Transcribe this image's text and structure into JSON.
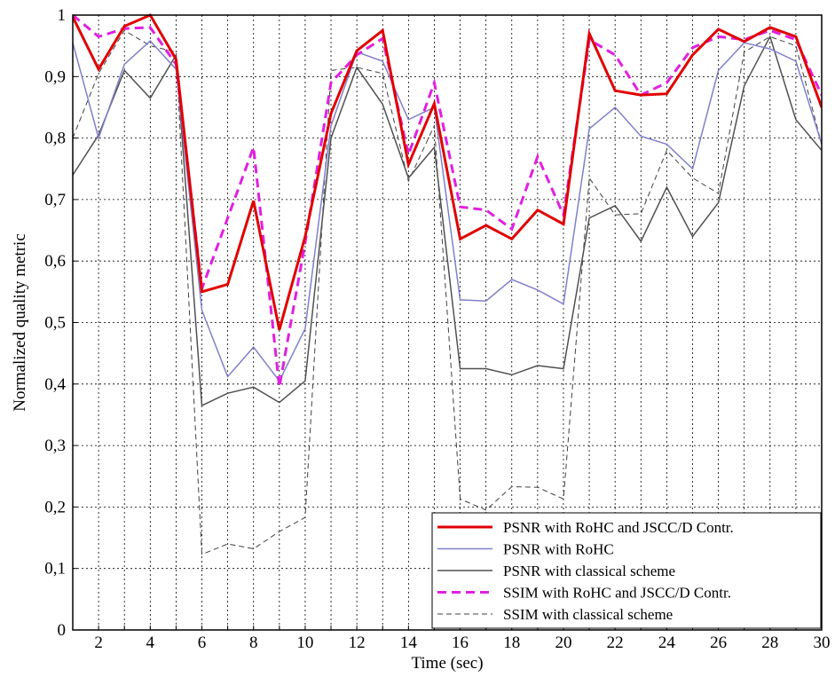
{
  "chart_data": {
    "type": "line",
    "title": "",
    "xlabel": "Time (sec)",
    "ylabel": "Normalized quality metric",
    "xlim": [
      1,
      30
    ],
    "ylim": [
      0,
      1
    ],
    "grid": true,
    "legend_position": "bottom-right",
    "x": [
      1,
      2,
      3,
      4,
      5,
      6,
      7,
      8,
      9,
      10,
      11,
      12,
      13,
      14,
      15,
      16,
      17,
      18,
      19,
      20,
      21,
      22,
      23,
      24,
      25,
      26,
      27,
      28,
      29,
      30
    ],
    "x_ticks": [
      2,
      4,
      6,
      8,
      10,
      12,
      14,
      16,
      18,
      20,
      22,
      24,
      26,
      28,
      30
    ],
    "x_tick_labels": [
      "2",
      "4",
      "6",
      "8",
      "10",
      "12",
      "14",
      "16",
      "18",
      "20",
      "22",
      "24",
      "26",
      "28",
      "30"
    ],
    "y_ticks": [
      0,
      0.1,
      0.2,
      0.3,
      0.4,
      0.5,
      0.6,
      0.7,
      0.8,
      0.9,
      1
    ],
    "y_tick_labels": [
      "0",
      "0,1",
      "0,2",
      "0,3",
      "0,4",
      "0,5",
      "0,6",
      "0,7",
      "0,8",
      "0,9",
      "1"
    ],
    "series": [
      {
        "name": "PSNR with RoHC and JSCC/D Contr.",
        "color": "#e00000",
        "dash": "solid",
        "width": 3,
        "values": [
          0.997,
          0.912,
          0.982,
          1.0,
          0.928,
          0.55,
          0.562,
          0.698,
          0.488,
          0.64,
          0.84,
          0.942,
          0.975,
          0.757,
          0.856,
          0.636,
          0.658,
          0.636,
          0.683,
          0.66,
          0.97,
          0.877,
          0.87,
          0.872,
          0.935,
          0.977,
          0.957,
          0.98,
          0.965,
          0.85
        ]
      },
      {
        "name": "PSNR with RoHC",
        "color": "#8080cc",
        "dash": "solid",
        "width": 1.5,
        "values": [
          0.955,
          0.8,
          0.92,
          0.958,
          0.912,
          0.52,
          0.412,
          0.46,
          0.405,
          0.49,
          0.82,
          0.94,
          0.925,
          0.83,
          0.85,
          0.537,
          0.535,
          0.57,
          0.553,
          0.53,
          0.815,
          0.85,
          0.803,
          0.79,
          0.75,
          0.91,
          0.955,
          0.945,
          0.925,
          0.79
        ]
      },
      {
        "name": "PSNR with classical scheme",
        "color": "#505050",
        "dash": "solid",
        "width": 1.5,
        "values": [
          0.74,
          0.805,
          0.91,
          0.865,
          0.935,
          0.365,
          0.385,
          0.395,
          0.37,
          0.405,
          0.8,
          0.915,
          0.855,
          0.735,
          0.785,
          0.425,
          0.425,
          0.415,
          0.43,
          0.425,
          0.67,
          0.69,
          0.632,
          0.72,
          0.64,
          0.695,
          0.885,
          0.965,
          0.83,
          0.78
        ]
      },
      {
        "name": "SSIM with RoHC and JSCC/D Contr.",
        "color": "#e020e0",
        "dash": "10,6",
        "width": 3,
        "values": [
          1.0,
          0.965,
          0.978,
          0.98,
          0.92,
          0.555,
          0.67,
          0.785,
          0.395,
          0.63,
          0.89,
          0.935,
          0.962,
          0.773,
          0.89,
          0.688,
          0.683,
          0.652,
          0.77,
          0.675,
          0.96,
          0.935,
          0.87,
          0.89,
          0.947,
          0.965,
          0.96,
          0.975,
          0.96,
          0.87
        ]
      },
      {
        "name": "SSIM with classical scheme",
        "color": "#404040",
        "dash": "6,4",
        "width": 1,
        "values": [
          0.8,
          0.905,
          0.975,
          0.95,
          0.94,
          0.123,
          0.14,
          0.132,
          0.16,
          0.183,
          0.91,
          0.915,
          0.905,
          0.73,
          0.82,
          0.213,
          0.195,
          0.233,
          0.232,
          0.213,
          0.735,
          0.675,
          0.677,
          0.78,
          0.735,
          0.71,
          0.94,
          0.965,
          0.95,
          0.79
        ]
      }
    ]
  }
}
